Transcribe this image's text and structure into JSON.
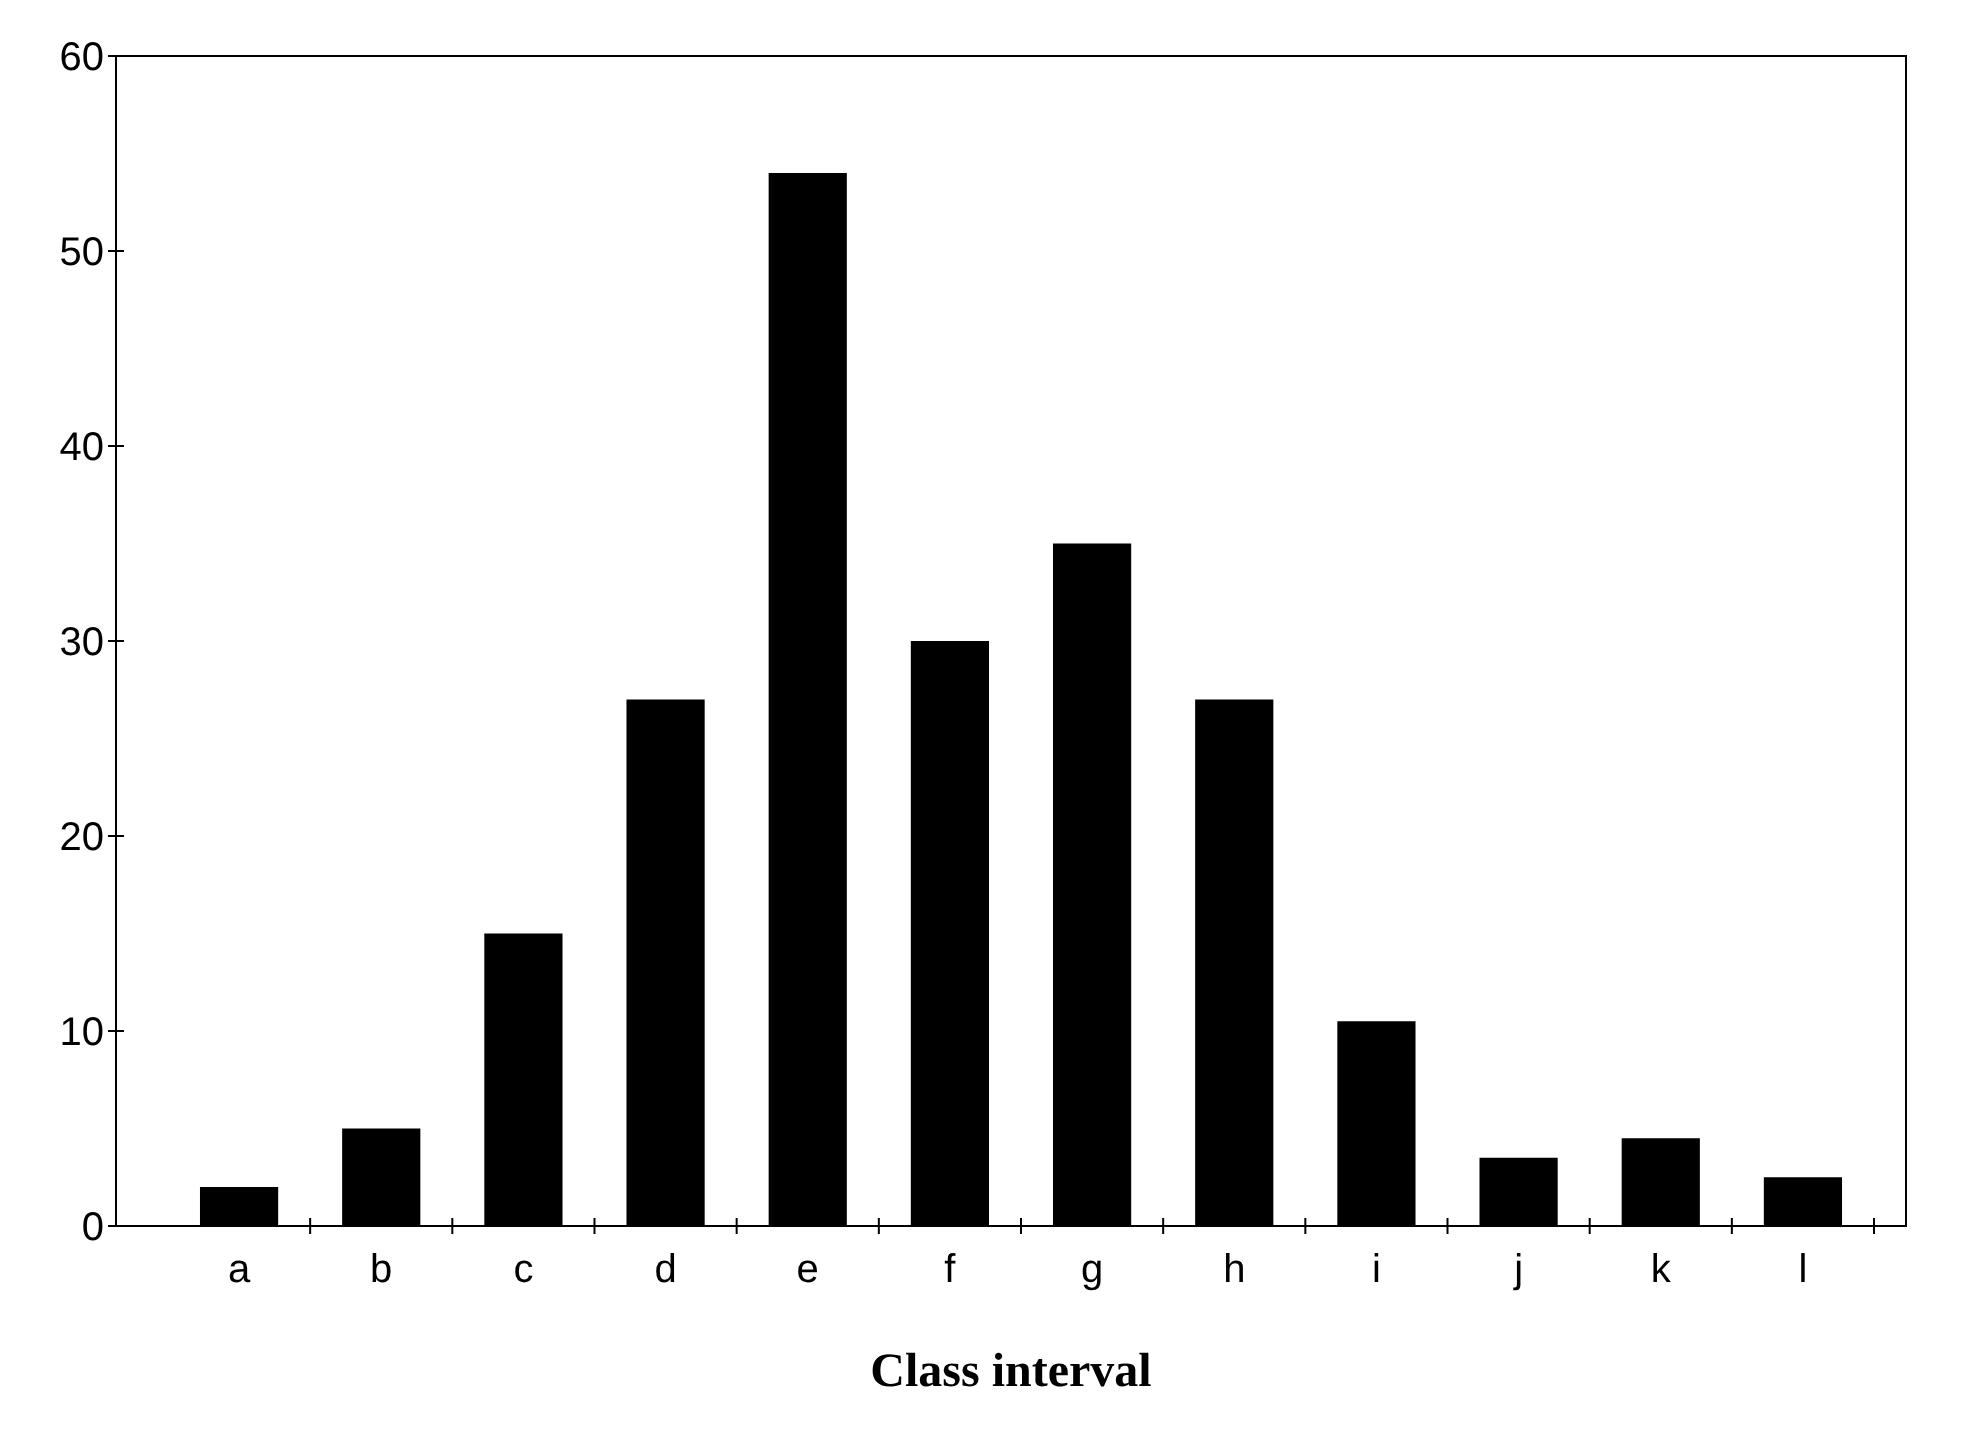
{
  "chart_data": {
    "type": "bar",
    "xlabel": "Class interval",
    "categories": [
      "a",
      "b",
      "c",
      "d",
      "e",
      "f",
      "g",
      "h",
      "i",
      "j",
      "k",
      "l"
    ],
    "values": [
      2,
      5,
      15,
      27,
      54,
      30,
      35,
      27,
      10.5,
      3.5,
      4.5,
      2.5
    ],
    "color": "#000000",
    "ylim": [
      0,
      60
    ],
    "yticks": [
      0,
      10,
      20,
      30,
      40,
      50,
      60
    ],
    "grid": false
  }
}
